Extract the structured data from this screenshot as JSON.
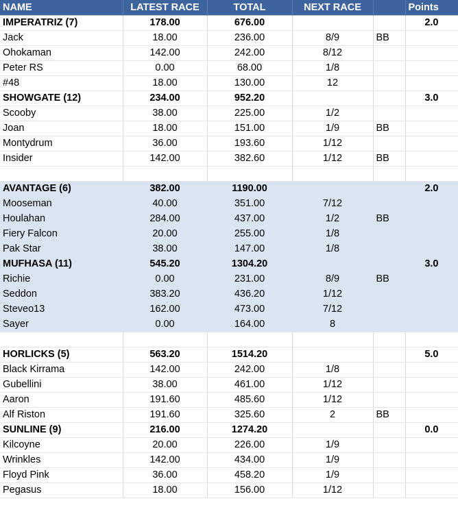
{
  "header": {
    "name": "NAME",
    "latest": "LATEST RACE",
    "total": "TOTAL",
    "next": "NEXT RACE",
    "points": "Points"
  },
  "groups": [
    {
      "shaded": false,
      "teams": [
        {
          "name": "IMPERATRIZ (7)",
          "latest": "178.00",
          "total": "676.00",
          "points": "2.0",
          "members": [
            {
              "name": "Jack",
              "latest": "18.00",
              "total": "236.00",
              "next": "8/9",
              "bb": "BB"
            },
            {
              "name": "Ohokaman",
              "latest": "142.00",
              "total": "242.00",
              "next": "8/12",
              "bb": ""
            },
            {
              "name": "Peter RS",
              "latest": "0.00",
              "total": "68.00",
              "next": "1/8",
              "bb": ""
            },
            {
              "name": "#48",
              "latest": "18.00",
              "total": "130.00",
              "next": "12",
              "bb": ""
            }
          ]
        },
        {
          "name": "SHOWGATE (12)",
          "latest": "234.00",
          "total": "952.20",
          "points": "3.0",
          "members": [
            {
              "name": "Scooby",
              "latest": "38.00",
              "total": "225.00",
              "next": "1/2",
              "bb": ""
            },
            {
              "name": "Joan",
              "latest": "18.00",
              "total": "151.00",
              "next": "1/9",
              "bb": "BB"
            },
            {
              "name": "Montydrum",
              "latest": "36.00",
              "total": "193.60",
              "next": "1/12",
              "bb": ""
            },
            {
              "name": "Insider",
              "latest": "142.00",
              "total": "382.60",
              "next": "1/12",
              "bb": "BB"
            }
          ]
        }
      ]
    },
    {
      "shaded": true,
      "teams": [
        {
          "name": "AVANTAGE (6)",
          "latest": "382.00",
          "total": "1190.00",
          "points": "2.0",
          "members": [
            {
              "name": "Mooseman",
              "latest": "40.00",
              "total": "351.00",
              "next": "7/12",
              "bb": ""
            },
            {
              "name": "Houlahan",
              "latest": "284.00",
              "total": "437.00",
              "next": "1/2",
              "bb": "BB"
            },
            {
              "name": "Fiery Falcon",
              "latest": "20.00",
              "total": "255.00",
              "next": "1/8",
              "bb": ""
            },
            {
              "name": "Pak Star",
              "latest": "38.00",
              "total": "147.00",
              "next": "1/8",
              "bb": ""
            }
          ]
        },
        {
          "name": "MUFHASA (11)",
          "latest": "545.20",
          "total": "1304.20",
          "points": "3.0",
          "members": [
            {
              "name": "Richie",
              "latest": "0.00",
              "total": "231.00",
              "next": "8/9",
              "bb": "BB"
            },
            {
              "name": "Seddon",
              "latest": "383.20",
              "total": "436.20",
              "next": "1/12",
              "bb": ""
            },
            {
              "name": "Steveo13",
              "latest": "162.00",
              "total": "473.00",
              "next": "7/12",
              "bb": ""
            },
            {
              "name": "Sayer",
              "latest": "0.00",
              "total": "164.00",
              "next": "8",
              "bb": ""
            }
          ]
        }
      ]
    },
    {
      "shaded": false,
      "teams": [
        {
          "name": "HORLICKS (5)",
          "latest": "563.20",
          "total": "1514.20",
          "points": "5.0",
          "members": [
            {
              "name": "Black Kirrama",
              "latest": "142.00",
              "total": "242.00",
              "next": "1/8",
              "bb": ""
            },
            {
              "name": "Gubellini",
              "latest": "38.00",
              "total": "461.00",
              "next": "1/12",
              "bb": ""
            },
            {
              "name": "Aaron",
              "latest": "191.60",
              "total": "485.60",
              "next": "1/12",
              "bb": ""
            },
            {
              "name": "Alf Riston",
              "latest": "191.60",
              "total": "325.60",
              "next": "2",
              "bb": "BB"
            }
          ]
        },
        {
          "name": "SUNLINE (9)",
          "latest": "216.00",
          "total": "1274.20",
          "points": "0.0",
          "members": [
            {
              "name": "Kilcoyne",
              "latest": "20.00",
              "total": "226.00",
              "next": "1/9",
              "bb": ""
            },
            {
              "name": "Wrinkles",
              "latest": "142.00",
              "total": "434.00",
              "next": "1/9",
              "bb": ""
            },
            {
              "name": "Floyd Pink",
              "latest": "36.00",
              "total": "458.20",
              "next": "1/9",
              "bb": ""
            },
            {
              "name": "Pegasus",
              "latest": "18.00",
              "total": "156.00",
              "next": "1/12",
              "bb": ""
            }
          ]
        }
      ]
    }
  ]
}
